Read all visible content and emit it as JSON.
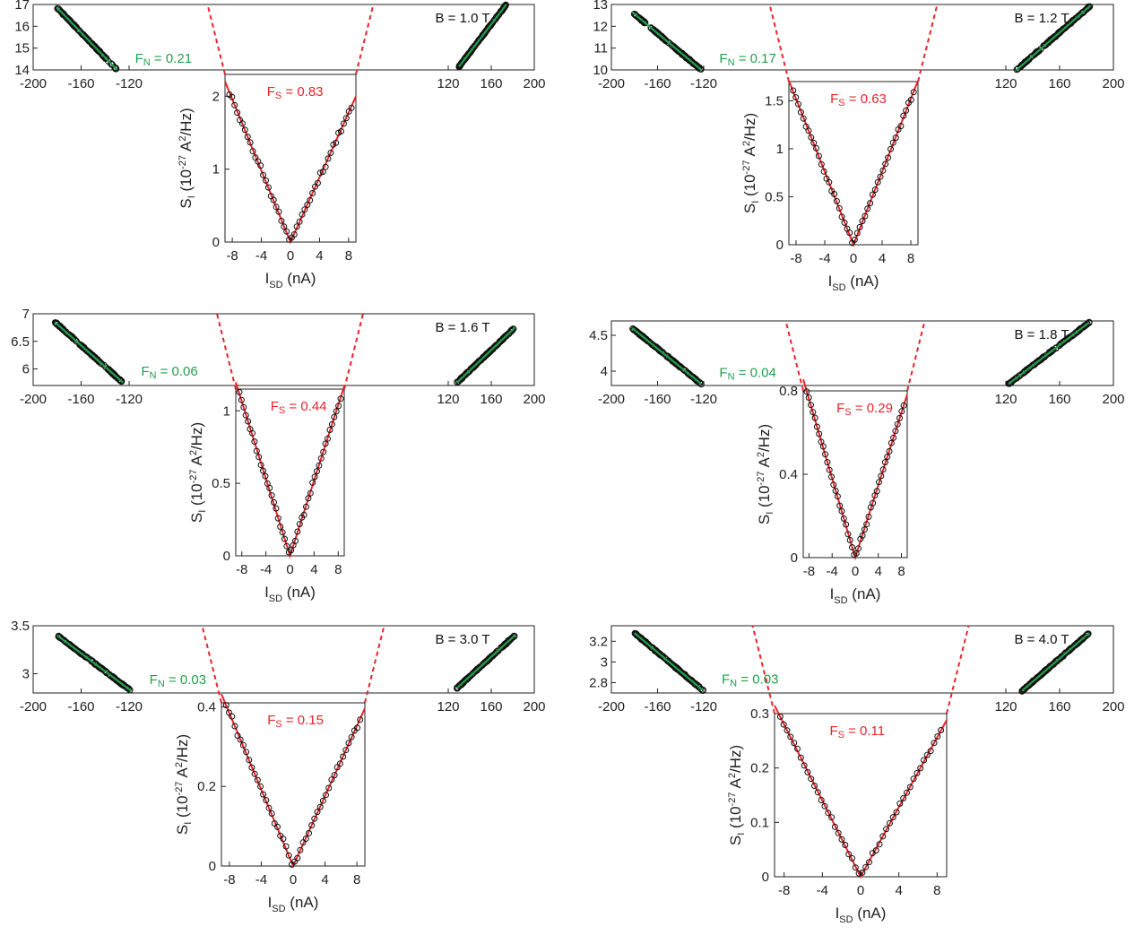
{
  "colors": {
    "data_marker": "#111111",
    "normal_fit": "#22a04b",
    "shot_fit": "#e8252b",
    "axis": "#222222"
  },
  "chart_data": [
    {
      "type": "scatter",
      "field_label": "B = 1.0 T",
      "main": {
        "xlim": [
          -200,
          200
        ],
        "ylim": [
          14,
          17
        ],
        "xticks": [
          "-200",
          "-160",
          "-120",
          "120",
          "160",
          "200"
        ],
        "yticks": [
          "14",
          "15",
          "16",
          "17"
        ],
        "fit_label": {
          "symbol": "F",
          "sub": "N",
          "text": " = 0.21"
        },
        "left_fit": [
          [
            -180,
            16.85
          ],
          [
            -130,
            14.0
          ]
        ],
        "right_fit": [
          [
            130,
            14.15
          ],
          [
            174,
            17.0
          ]
        ]
      },
      "inset": {
        "xlabel": {
          "symbol": "I",
          "sub": "SD",
          "unit": "  (nA)"
        },
        "ylabel": {
          "symbol": "S",
          "sub": "I",
          "mid": " (10",
          "exp": "-27",
          "unit": "A",
          "unit_exp": "2",
          "tail": "/Hz)"
        },
        "xlim": [
          -9,
          9
        ],
        "ylim": [
          0,
          2.3
        ],
        "xticks": [
          -8,
          -4,
          0,
          4,
          8
        ],
        "yticks": [
          0,
          1,
          2
        ],
        "ytick_labels": [
          "0",
          "1",
          "2"
        ],
        "fit_label": {
          "symbol": "F",
          "sub": "S",
          "text": " = 0.83"
        },
        "fit_slopes": [
          -0.245,
          0.222
        ]
      }
    },
    {
      "type": "scatter",
      "field_label": "B = 1.2 T",
      "main": {
        "xlim": [
          -200,
          200
        ],
        "ylim": [
          10,
          13
        ],
        "xticks": [
          "-200",
          "-160",
          "-120",
          "120",
          "160",
          "200"
        ],
        "yticks": [
          "10",
          "11",
          "12",
          "13"
        ],
        "fit_label": {
          "symbol": "F",
          "sub": "N",
          "text": " = 0.17"
        },
        "left_fit": [
          [
            -182,
            12.65
          ],
          [
            -122,
            10.0
          ]
        ],
        "right_fit": [
          [
            128,
            10.0
          ],
          [
            183,
            12.95
          ]
        ]
      },
      "inset": {
        "xlabel": {
          "symbol": "I",
          "sub": "SD",
          "unit": "  (nA)"
        },
        "ylabel": {
          "symbol": "S",
          "sub": "I",
          "mid": " (10",
          "exp": "-27",
          "unit": "A",
          "unit_exp": "2",
          "tail": "/Hz)"
        },
        "xlim": [
          -9,
          9
        ],
        "ylim": [
          0,
          1.7
        ],
        "xticks": [
          -8,
          -4,
          0,
          4,
          8
        ],
        "yticks": [
          0,
          0.5,
          1,
          1.5
        ],
        "ytick_labels": [
          "0",
          "0.5",
          "1",
          "1.5"
        ],
        "fit_label": {
          "symbol": "F",
          "sub": "S",
          "text": " = 0.63"
        },
        "fit_slopes": [
          -0.19,
          0.19
        ]
      }
    },
    {
      "type": "scatter",
      "field_label": "B = 1.6 T",
      "main": {
        "xlim": [
          -200,
          200
        ],
        "ylim": [
          5.7,
          7.0
        ],
        "xticks": [
          "-200",
          "-160",
          "-120",
          "120",
          "160",
          "200"
        ],
        "yticks": [
          "6",
          "6.5",
          "7"
        ],
        "fit_label": {
          "symbol": "F",
          "sub": "N",
          "text": " = 0.06"
        },
        "left_fit": [
          [
            -182,
            6.85
          ],
          [
            -125,
            5.75
          ]
        ],
        "right_fit": [
          [
            128,
            5.75
          ],
          [
            182,
            6.75
          ]
        ]
      },
      "inset": {
        "xlabel": {
          "symbol": "I",
          "sub": "SD",
          "unit": "  (nA)"
        },
        "ylabel": {
          "symbol": "S",
          "sub": "I",
          "mid": " (10",
          "exp": "-27",
          "unit": "A",
          "unit_exp": "2",
          "tail": "/Hz)"
        },
        "xlim": [
          -9,
          9
        ],
        "ylim": [
          0,
          1.15
        ],
        "xticks": [
          -8,
          -4,
          0,
          4,
          8
        ],
        "yticks": [
          0,
          0.5,
          1
        ],
        "ytick_labels": [
          "0",
          "0.5",
          "1"
        ],
        "fit_label": {
          "symbol": "F",
          "sub": "S",
          "text": " = 0.44"
        },
        "fit_slopes": [
          -0.133,
          0.13
        ]
      }
    },
    {
      "type": "scatter",
      "field_label": "B = 1.8 T",
      "main": {
        "xlim": [
          -200,
          200
        ],
        "ylim": [
          3.8,
          4.7
        ],
        "xticks": [
          "-200",
          "-160",
          "-120",
          "120",
          "160",
          "200"
        ],
        "yticks": [
          "4",
          "4.5"
        ],
        "fit_label": {
          "symbol": "F",
          "sub": "N",
          "text": " = 0.04"
        },
        "left_fit": [
          [
            -182,
            4.6
          ],
          [
            -122,
            3.82
          ]
        ],
        "right_fit": [
          [
            122,
            3.82
          ],
          [
            182,
            4.68
          ]
        ]
      },
      "inset": {
        "xlabel": {
          "symbol": "I",
          "sub": "SD",
          "unit": "  (nA)"
        },
        "ylabel": {
          "symbol": "S",
          "sub": "I",
          "mid": " (10",
          "exp": "-27",
          "unit": "A",
          "unit_exp": "2",
          "tail": "/Hz)"
        },
        "xlim": [
          -9,
          9
        ],
        "ylim": [
          0,
          0.8
        ],
        "xticks": [
          -8,
          -4,
          0,
          4,
          8
        ],
        "yticks": [
          0,
          0.4,
          0.8
        ],
        "ytick_labels": [
          "0",
          "0.4",
          "0.8"
        ],
        "fit_label": {
          "symbol": "F",
          "sub": "S",
          "text": " = 0.29"
        },
        "fit_slopes": [
          -0.095,
          0.087
        ]
      }
    },
    {
      "type": "scatter",
      "field_label": "B = 3.0 T",
      "main": {
        "xlim": [
          -200,
          200
        ],
        "ylim": [
          2.8,
          3.5
        ],
        "xticks": [
          "-200",
          "-160",
          "-120",
          "120",
          "160",
          "200"
        ],
        "yticks": [
          "3",
          "3.5"
        ],
        "fit_label": {
          "symbol": "F",
          "sub": "N",
          "text": " = 0.03"
        },
        "left_fit": [
          [
            -180,
            3.4
          ],
          [
            -118,
            2.82
          ]
        ],
        "right_fit": [
          [
            128,
            2.85
          ],
          [
            182,
            3.4
          ]
        ]
      },
      "inset": {
        "xlabel": {
          "symbol": "I",
          "sub": "SD",
          "unit": "  (nA)"
        },
        "ylabel": {
          "symbol": "S",
          "sub": "I",
          "mid": " (10",
          "exp": "-27",
          "unit": "A",
          "unit_exp": "2",
          "tail": "/Hz)"
        },
        "xlim": [
          -9,
          9
        ],
        "ylim": [
          0,
          0.41
        ],
        "xticks": [
          -8,
          -4,
          0,
          4,
          8
        ],
        "yticks": [
          0,
          0.2,
          0.4
        ],
        "ytick_labels": [
          "0",
          "0.2",
          "0.4"
        ],
        "fit_label": {
          "symbol": "F",
          "sub": "S",
          "text": " = 0.15"
        },
        "fit_slopes": [
          -0.048,
          0.044
        ]
      }
    },
    {
      "type": "scatter",
      "field_label": "B = 4.0 T",
      "main": {
        "xlim": [
          -200,
          200
        ],
        "ylim": [
          2.7,
          3.35
        ],
        "xticks": [
          "-200",
          "-160",
          "-120",
          "120",
          "160",
          "200"
        ],
        "yticks": [
          "2.8",
          "3",
          "3.2"
        ],
        "fit_label": {
          "symbol": "F",
          "sub": "N",
          "text": " = 0.03"
        },
        "left_fit": [
          [
            -180,
            3.28
          ],
          [
            -120,
            2.72
          ]
        ],
        "right_fit": [
          [
            132,
            2.72
          ],
          [
            182,
            3.28
          ]
        ]
      },
      "inset": {
        "xlabel": {
          "symbol": "I",
          "sub": "SD",
          "unit": "  (nA)"
        },
        "ylabel": {
          "symbol": "S",
          "sub": "I",
          "mid": " (10",
          "exp": "-27",
          "unit": "A",
          "unit_exp": "2",
          "tail": "/Hz)"
        },
        "xlim": [
          -9,
          9
        ],
        "ylim": [
          0,
          0.3
        ],
        "xticks": [
          -8,
          -4,
          0,
          4,
          8
        ],
        "yticks": [
          0,
          0.1,
          0.2,
          0.3
        ],
        "ytick_labels": [
          "0",
          "0.1",
          "0.2",
          "0.3"
        ],
        "fit_label": {
          "symbol": "F",
          "sub": "S",
          "text": " = 0.11"
        },
        "fit_slopes": [
          -0.035,
          0.032
        ]
      }
    }
  ]
}
